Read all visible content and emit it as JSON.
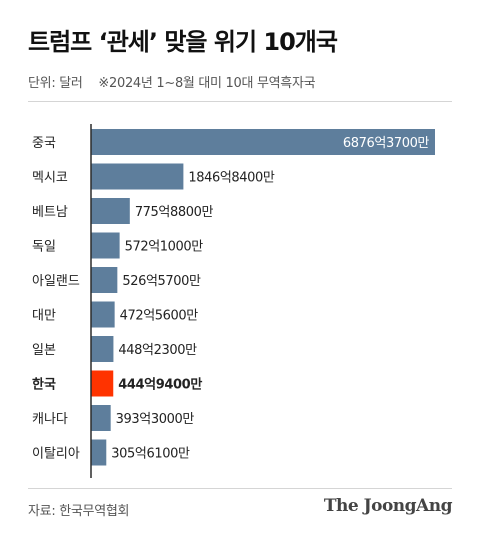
{
  "header": {
    "title": "트럼프 ‘관세’ 맞을 위기 10개국",
    "unit": "단위: 달러",
    "note": "※2024년 1~8월 대미 10대 무역흑자국"
  },
  "footer": {
    "source": "자료: 한국무역협회",
    "brand": "The JoongAng"
  },
  "colors": {
    "bar": "#5e7e9c",
    "highlight_bar": "#ff3300",
    "axis": "#2b2b2b",
    "label": "#222222"
  },
  "chart_data": {
    "type": "bar",
    "orientation": "horizontal",
    "categories": [
      "중국",
      "멕시코",
      "베트남",
      "독일",
      "아일랜드",
      "대만",
      "일본",
      "한국",
      "캐나다",
      "이탈리아"
    ],
    "values": [
      687637000000,
      184684000000,
      77588000000,
      57210000000,
      52657000000,
      47256000000,
      44823000000,
      44494000000,
      39330000000,
      30561000000
    ],
    "value_labels": [
      "6876억3700만",
      "1846억8400만",
      "775억8800만",
      "572억1000만",
      "526억5700만",
      "472억5600만",
      "448억2300만",
      "444억9400만",
      "393억3000만",
      "305억6100만"
    ],
    "highlight": "한국",
    "xlim": [
      0,
      687637000000
    ],
    "grid": false,
    "legend": "none"
  }
}
